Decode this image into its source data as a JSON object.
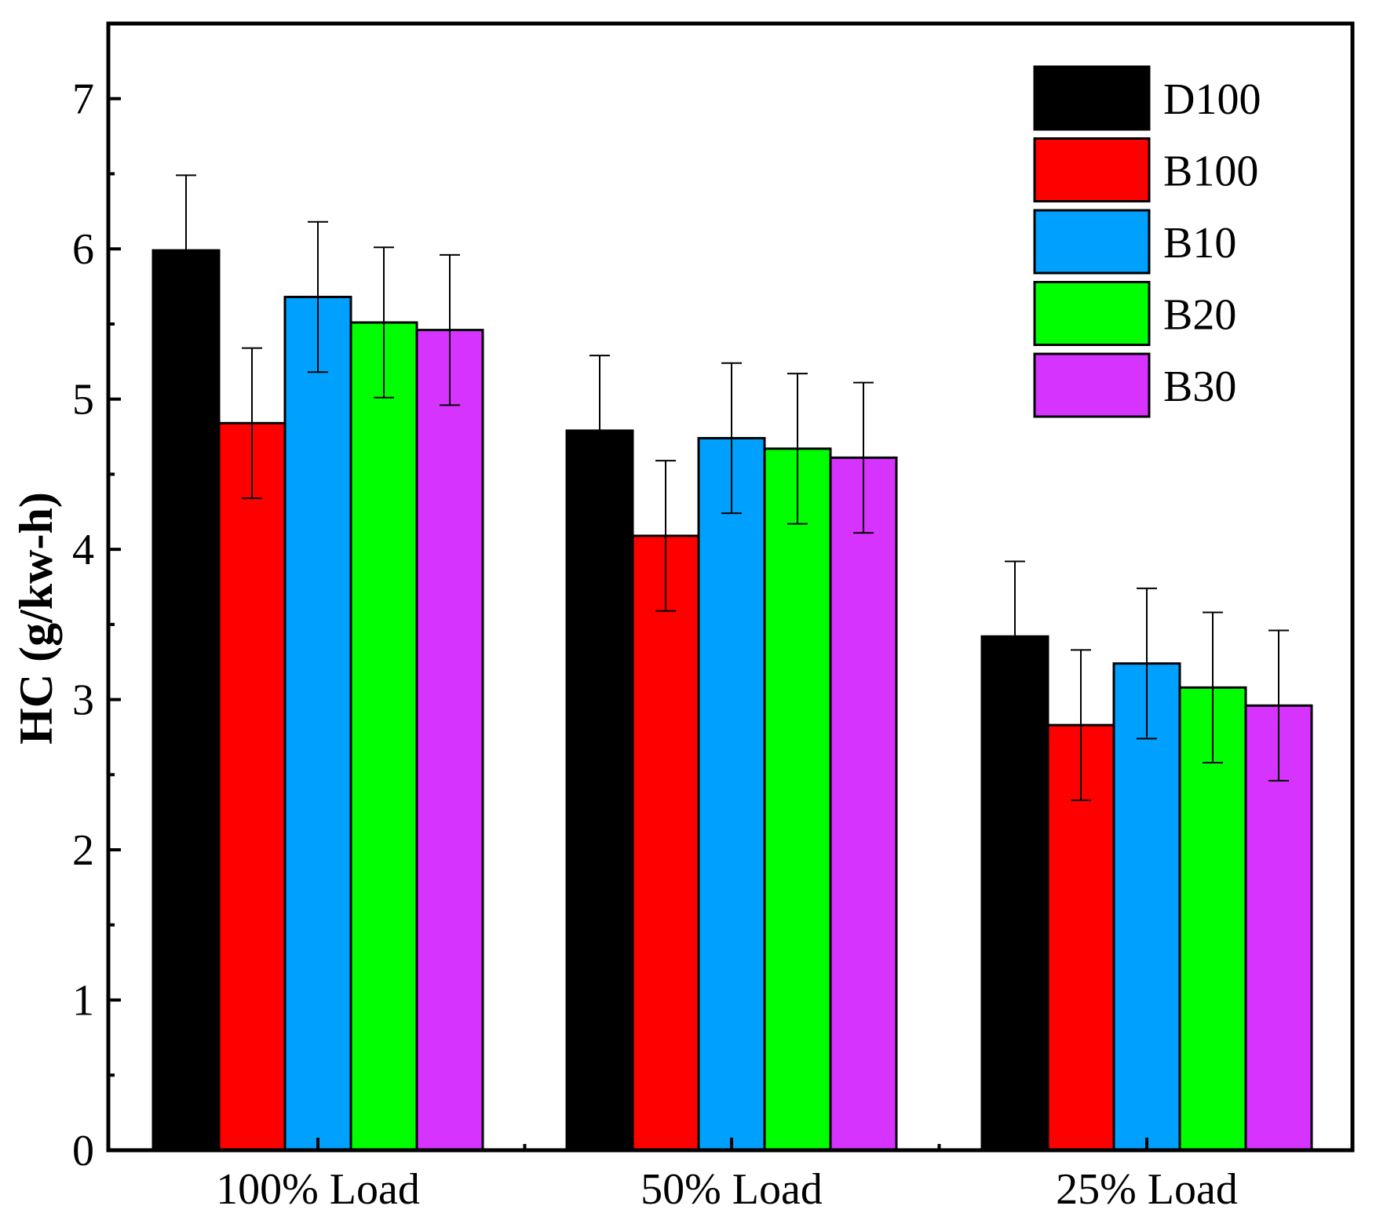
{
  "chart_data": {
    "type": "bar",
    "title": "",
    "xlabel": "",
    "ylabel": "HC (g/kw-h)",
    "ylim": [
      0,
      7.5
    ],
    "yticks": [
      0,
      1,
      2,
      3,
      4,
      5,
      6,
      7
    ],
    "ytick_labels": [
      "0",
      "1",
      "2",
      "3",
      "4",
      "5",
      "6",
      "7"
    ],
    "minor_ytick_step": 0.5,
    "categories": [
      "100% Load",
      "50% Load",
      "25% Load"
    ],
    "grid": false,
    "legend_position": "top-right",
    "series": [
      {
        "name": "D100",
        "color": "#000000",
        "values": [
          5.99,
          4.79,
          3.42
        ],
        "errors": [
          0.5,
          0.5,
          0.5
        ]
      },
      {
        "name": "B100",
        "color": "#ff0000",
        "values": [
          4.84,
          4.09,
          2.83
        ],
        "errors": [
          0.5,
          0.5,
          0.5
        ]
      },
      {
        "name": "B10",
        "color": "#00a0ff",
        "values": [
          5.68,
          4.74,
          3.24
        ],
        "errors": [
          0.5,
          0.5,
          0.5
        ]
      },
      {
        "name": "B20",
        "color": "#00ff00",
        "values": [
          5.51,
          4.67,
          3.08
        ],
        "errors": [
          0.5,
          0.5,
          0.5
        ]
      },
      {
        "name": "B30",
        "color": "#d633ff",
        "values": [
          5.46,
          4.61,
          2.96
        ],
        "errors": [
          0.5,
          0.5,
          0.5
        ]
      }
    ]
  }
}
